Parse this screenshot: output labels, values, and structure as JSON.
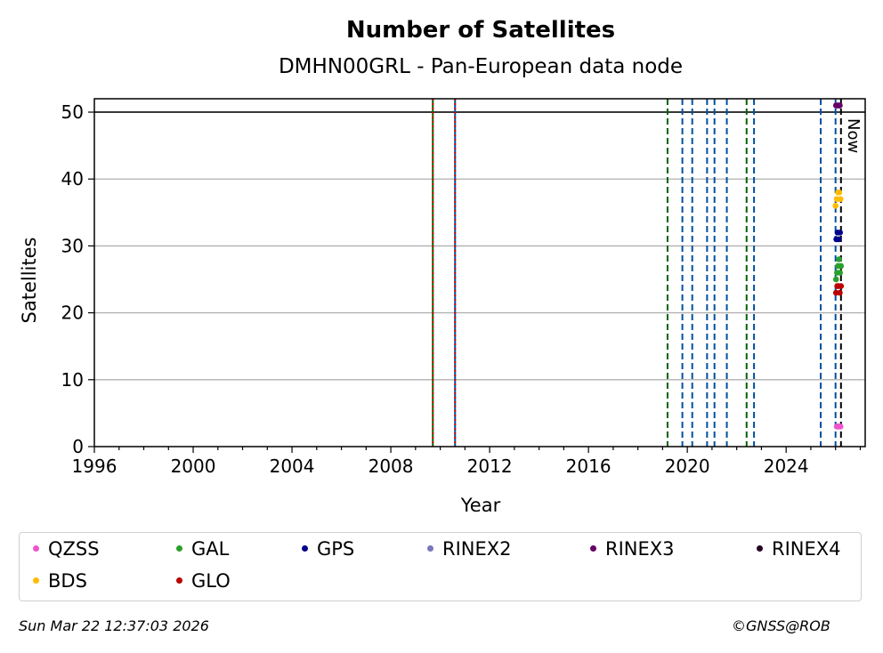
{
  "chart_data": {
    "type": "scatter",
    "title": "Number of Satellites",
    "subtitle": "DMHN00GRL - Pan-European data node",
    "xlabel": "Year",
    "ylabel": "Satellites",
    "xlim": [
      1996,
      2027.2
    ],
    "ylim": [
      0,
      52
    ],
    "xticks": [
      1996,
      2000,
      2004,
      2008,
      2012,
      2016,
      2020,
      2024
    ],
    "yticks": [
      0,
      10,
      20,
      30,
      40,
      50
    ],
    "grid": "y",
    "reference_line": 50,
    "now_label": "Now",
    "now_x": 2026.22,
    "vlines": [
      {
        "x": 2009.7,
        "color": "#006400",
        "style": "solid"
      },
      {
        "x": 2009.7,
        "color": "#dd0000",
        "style": "dotted"
      },
      {
        "x": 2010.6,
        "color": "#0050a0",
        "style": "solid"
      },
      {
        "x": 2010.6,
        "color": "#dd0000",
        "style": "dotted"
      },
      {
        "x": 2019.2,
        "color": "#006400",
        "style": "dashed"
      },
      {
        "x": 2019.8,
        "color": "#0050a0",
        "style": "dashed"
      },
      {
        "x": 2020.2,
        "color": "#0050a0",
        "style": "dashed"
      },
      {
        "x": 2020.8,
        "color": "#0050a0",
        "style": "dashed"
      },
      {
        "x": 2021.1,
        "color": "#0050a0",
        "style": "dashed"
      },
      {
        "x": 2021.6,
        "color": "#0050a0",
        "style": "dashed"
      },
      {
        "x": 2022.4,
        "color": "#006400",
        "style": "dashed"
      },
      {
        "x": 2022.7,
        "color": "#0050a0",
        "style": "dashed"
      },
      {
        "x": 2025.4,
        "color": "#0050a0",
        "style": "dashed"
      },
      {
        "x": 2026.0,
        "color": "#0050a0",
        "style": "dashed"
      },
      {
        "x": 2026.22,
        "color": "#000000",
        "style": "dashed"
      }
    ],
    "series": [
      {
        "name": "QZSS",
        "color": "#ee55cc",
        "points": [
          [
            2026.05,
            3
          ],
          [
            2026.1,
            3
          ],
          [
            2026.15,
            3
          ],
          [
            2026.2,
            3
          ]
        ]
      },
      {
        "name": "GAL",
        "color": "#2ca02c",
        "points": [
          [
            2026.02,
            25
          ],
          [
            2026.06,
            26
          ],
          [
            2026.1,
            27
          ],
          [
            2026.14,
            28
          ],
          [
            2026.18,
            26
          ],
          [
            2026.22,
            27
          ]
        ]
      },
      {
        "name": "GPS",
        "color": "#00008b",
        "points": [
          [
            2026.03,
            31
          ],
          [
            2026.08,
            32
          ],
          [
            2026.13,
            31
          ],
          [
            2026.18,
            32
          ]
        ]
      },
      {
        "name": "RINEX2",
        "color": "#7777bb",
        "points": []
      },
      {
        "name": "RINEX3",
        "color": "#660066",
        "points": [
          [
            2026.02,
            51
          ],
          [
            2026.07,
            51
          ],
          [
            2026.12,
            51
          ],
          [
            2026.17,
            51
          ]
        ]
      },
      {
        "name": "RINEX4",
        "color": "#220022",
        "points": []
      },
      {
        "name": "BDS",
        "color": "#ffbb00",
        "points": [
          [
            2026.0,
            36
          ],
          [
            2026.05,
            37
          ],
          [
            2026.1,
            38
          ],
          [
            2026.15,
            38
          ],
          [
            2026.2,
            37
          ]
        ]
      },
      {
        "name": "GLO",
        "color": "#bb0000",
        "points": [
          [
            2026.02,
            23
          ],
          [
            2026.07,
            24
          ],
          [
            2026.12,
            24
          ],
          [
            2026.17,
            23
          ],
          [
            2026.22,
            24
          ]
        ]
      }
    ]
  },
  "footer": {
    "timestamp": "Sun Mar 22 12:37:03 2026",
    "copyright": "©GNSS@ROB"
  }
}
